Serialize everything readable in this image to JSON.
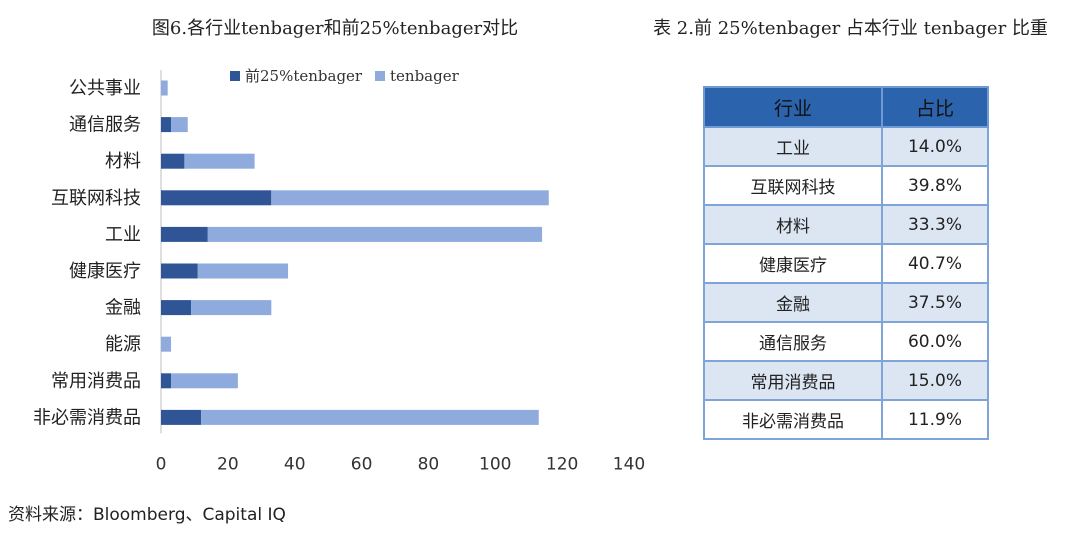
{
  "chart_title": "图6.各行业tenbager和前25%tenbager对比",
  "table_title": "表 2.前 25%tenbager 占本行业 tenbager 比重",
  "source": "资料来源：Bloomberg、Capital IQ",
  "colors": {
    "top25": "#2f5597",
    "all": "#8faadc",
    "table_header": "#2c63ad",
    "table_band": "#dce6f3"
  },
  "chart_data": {
    "type": "bar",
    "orientation": "horizontal",
    "stacked": true,
    "categories": [
      "公共事业",
      "通信服务",
      "材料",
      "互联网科技",
      "工业",
      "健康医疗",
      "金融",
      "能源",
      "常用消费品",
      "非必需消费品"
    ],
    "series": [
      {
        "name": "前25%tenbager",
        "values": [
          0,
          3,
          7,
          33,
          14,
          11,
          9,
          0,
          3,
          12
        ]
      },
      {
        "name": "tenbager",
        "values": [
          2,
          5,
          21,
          83,
          100,
          27,
          24,
          3,
          20,
          101
        ]
      }
    ],
    "xlim": [
      0,
      140
    ],
    "xticks": [
      0,
      20,
      40,
      60,
      80,
      100,
      120,
      140
    ],
    "legend_position": "top",
    "grid": false
  },
  "table": {
    "headers": [
      "行业",
      "占比"
    ],
    "rows": [
      [
        "工业",
        "14.0%"
      ],
      [
        "互联网科技",
        "39.8%"
      ],
      [
        "材料",
        "33.3%"
      ],
      [
        "健康医疗",
        "40.7%"
      ],
      [
        "金融",
        "37.5%"
      ],
      [
        "通信服务",
        "60.0%"
      ],
      [
        "常用消费品",
        "15.0%"
      ],
      [
        "非必需消费品",
        "11.9%"
      ]
    ]
  }
}
